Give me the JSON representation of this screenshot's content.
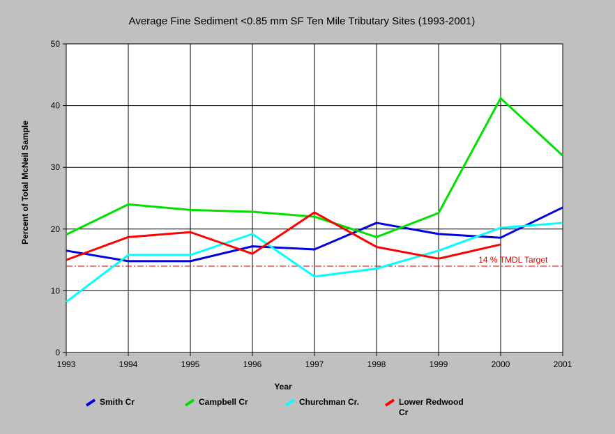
{
  "chart_data": {
    "type": "line",
    "title": "Average Fine Sediment <0.85 mm SF Ten Mile Tributary Sites (1993-2001)",
    "xlabel": "Year",
    "ylabel": "Percent of Total McNeil Sample",
    "x": [
      "1993",
      "1994",
      "1995",
      "1996",
      "1997",
      "1998",
      "1999",
      "2000",
      "2001"
    ],
    "ylim": [
      0,
      50
    ],
    "yticks": [
      "0",
      "10",
      "20",
      "30",
      "40",
      "50"
    ],
    "grid": true,
    "legend_position": "bottom",
    "series": [
      {
        "name": "Smith Cr",
        "color": "#0000e0",
        "values": [
          16.5,
          14.8,
          14.8,
          17.2,
          16.7,
          21.0,
          19.2,
          18.6,
          23.5
        ]
      },
      {
        "name": "Campbell Cr",
        "color": "#00e000",
        "values": [
          19.1,
          24.0,
          23.1,
          22.8,
          22.0,
          18.7,
          22.6,
          41.2,
          31.9
        ]
      },
      {
        "name": "Churchman Cr.",
        "color": "#00ffff",
        "values": [
          8.2,
          15.8,
          15.8,
          19.2,
          12.3,
          13.6,
          16.5,
          20.2,
          21.0
        ]
      },
      {
        "name": "Lower Redwood Cr",
        "color": "#ff0000",
        "values": [
          15.0,
          18.7,
          19.5,
          16.0,
          22.7,
          17.1,
          15.2,
          17.5,
          null
        ]
      }
    ],
    "reference_line": {
      "value": 14,
      "label": "14 % TMDL Target",
      "color": "#e00000"
    }
  }
}
